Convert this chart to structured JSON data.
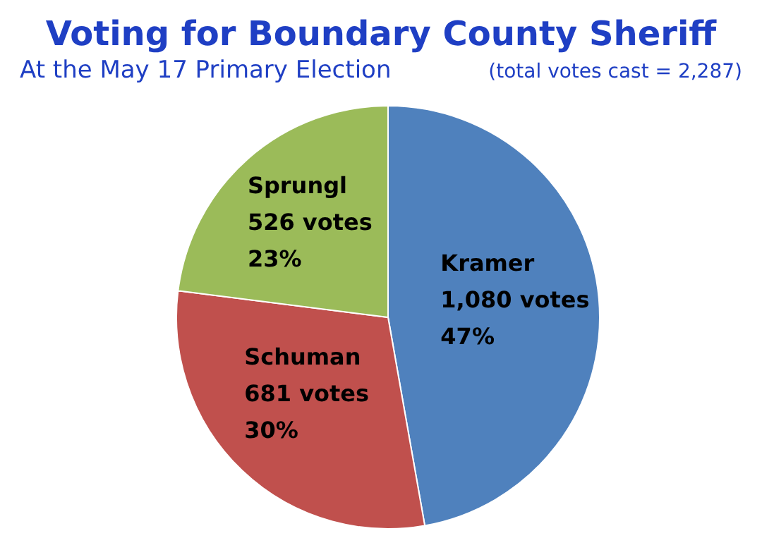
{
  "chart_data": {
    "type": "pie",
    "title": "Voting for Boundary County Sheriff",
    "subtitle": "At the May 17 Primary Election",
    "annotations": [
      "(total votes cast = 2,287)"
    ],
    "categories": [
      "Kramer",
      "Schuman",
      "Sprungl"
    ],
    "values": [
      1080,
      681,
      526
    ],
    "colors": [
      "#4f81bd",
      "#c0504d",
      "#9bbb59"
    ],
    "value_labels": [
      "1,080 votes\n47%",
      "681 votes\n30%",
      "526 votes\n23%"
    ]
  }
}
